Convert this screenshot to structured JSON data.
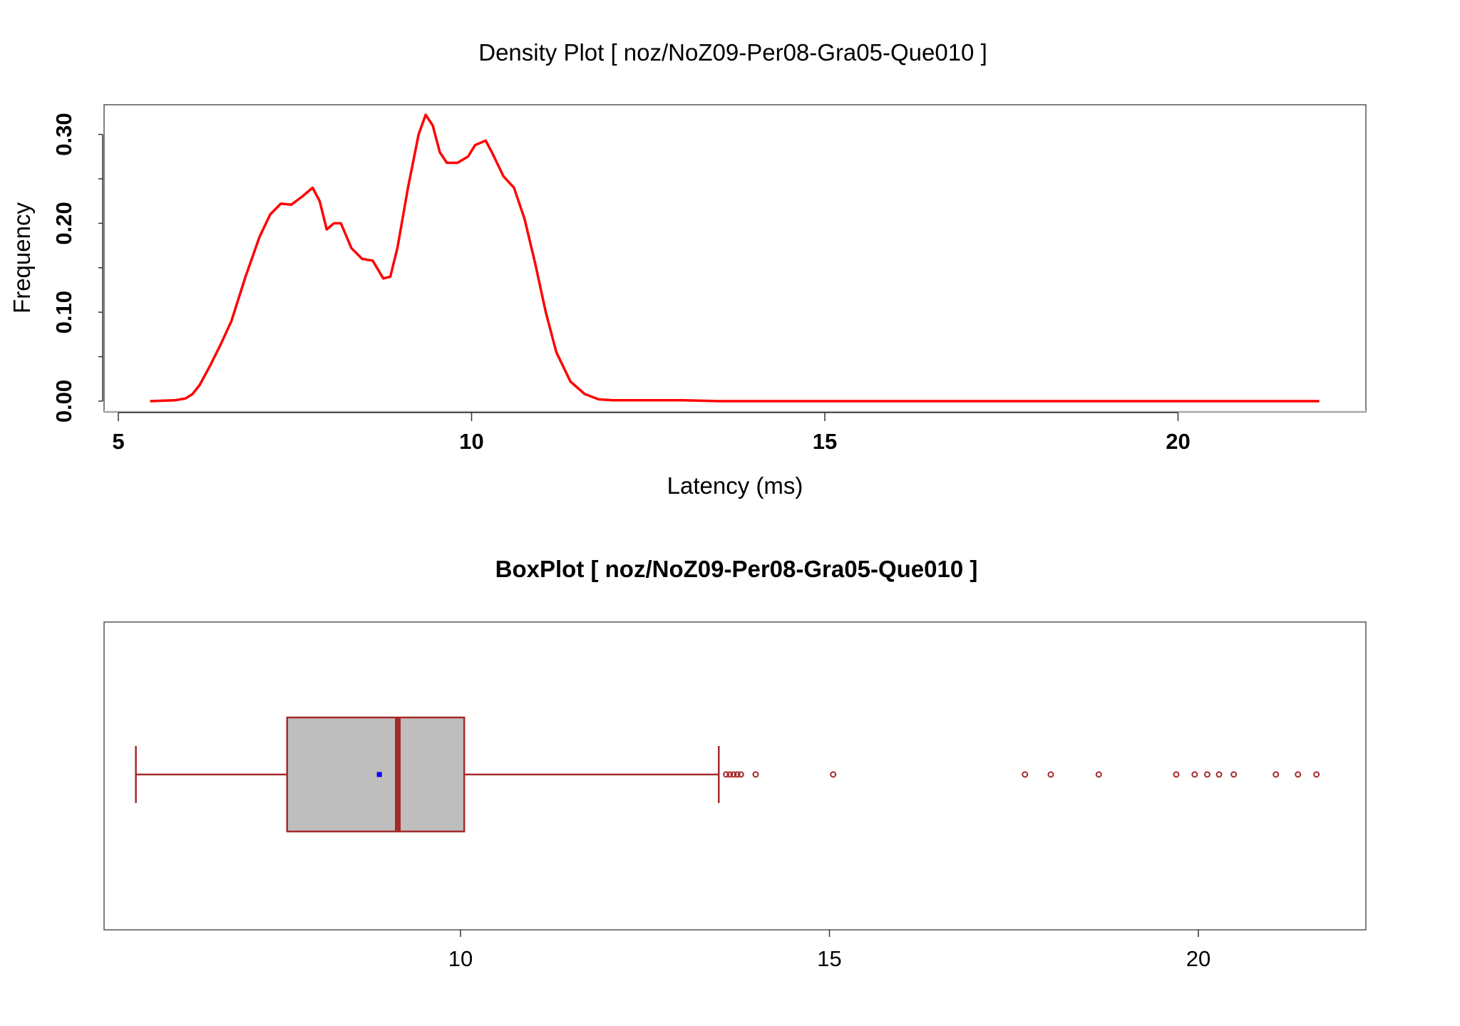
{
  "colors": {
    "density_line": "#ff0000",
    "box_border": "#a52a2a",
    "box_fill": "#bebebe",
    "median": "#a52a2a",
    "mean_marker": "#0000ff",
    "outlier": "#a52a2a",
    "axis": "#333333"
  },
  "chart_data": [
    {
      "type": "line",
      "title": "Density Plot [ noz/NoZ09-Per08-Gra05-Que010 ]",
      "xlabel": "Latency (ms)",
      "ylabel": "Frequency",
      "xlim": [
        5,
        22.5
      ],
      "ylim": [
        0,
        0.33
      ],
      "x_ticks": [
        5,
        10,
        15,
        20
      ],
      "x_tick_labels": [
        "5",
        "10",
        "15",
        "20"
      ],
      "y_ticks": [
        0,
        0.1,
        0.2,
        0.3
      ],
      "y_tick_labels": [
        "0.00",
        "0.10",
        "0.20",
        "0.30"
      ],
      "y_minor_ticks": [
        0.05,
        0.15,
        0.25
      ],
      "grid": false,
      "series": [
        {
          "x": [
            5.45,
            5.8,
            5.95,
            6.05,
            6.15,
            6.3,
            6.45,
            6.6,
            6.8,
            7.0,
            7.15,
            7.3,
            7.45,
            7.6,
            7.75,
            7.85,
            7.95,
            8.05,
            8.15,
            8.3,
            8.45,
            8.6,
            8.75,
            8.85,
            8.95,
            9.1,
            9.25,
            9.35,
            9.45,
            9.55,
            9.65,
            9.8,
            9.95,
            10.05,
            10.2,
            10.3,
            10.45,
            10.6,
            10.75,
            10.9,
            11.05,
            11.2,
            11.4,
            11.6,
            11.8,
            12.0,
            12.5,
            13.0,
            13.5,
            14.0,
            15.0,
            16.0,
            17.0,
            18.0,
            19.0,
            20.0,
            21.0,
            22.0
          ],
          "y": [
            0.0,
            0.001,
            0.003,
            0.008,
            0.018,
            0.04,
            0.064,
            0.09,
            0.14,
            0.185,
            0.21,
            0.222,
            0.221,
            0.23,
            0.24,
            0.225,
            0.193,
            0.2,
            0.2,
            0.172,
            0.16,
            0.158,
            0.138,
            0.14,
            0.172,
            0.24,
            0.3,
            0.322,
            0.31,
            0.28,
            0.268,
            0.268,
            0.275,
            0.288,
            0.293,
            0.278,
            0.253,
            0.24,
            0.205,
            0.155,
            0.1,
            0.055,
            0.022,
            0.008,
            0.002,
            0.001,
            0.001,
            0.001,
            0.0,
            0.0,
            0.0,
            0.0,
            0.0,
            0.0,
            0.0,
            0.0,
            0.0,
            0.0
          ]
        }
      ]
    },
    {
      "type": "box",
      "title": "BoxPlot [ noz/NoZ09-Per08-Gra05-Que010 ]",
      "xlim": [
        5,
        22.5
      ],
      "x_ticks": [
        10,
        15,
        20
      ],
      "x_tick_labels": [
        "10",
        "15",
        "20"
      ],
      "whisker_low": 5.6,
      "q1": 7.65,
      "median": 9.15,
      "q3": 10.05,
      "whisker_high": 13.5,
      "mean": 8.9,
      "outliers": [
        13.6,
        13.65,
        13.7,
        13.75,
        13.8,
        14.0,
        15.05,
        17.65,
        18.0,
        18.65,
        19.7,
        19.95,
        20.12,
        20.28,
        20.48,
        21.05,
        21.35,
        21.6
      ]
    }
  ]
}
